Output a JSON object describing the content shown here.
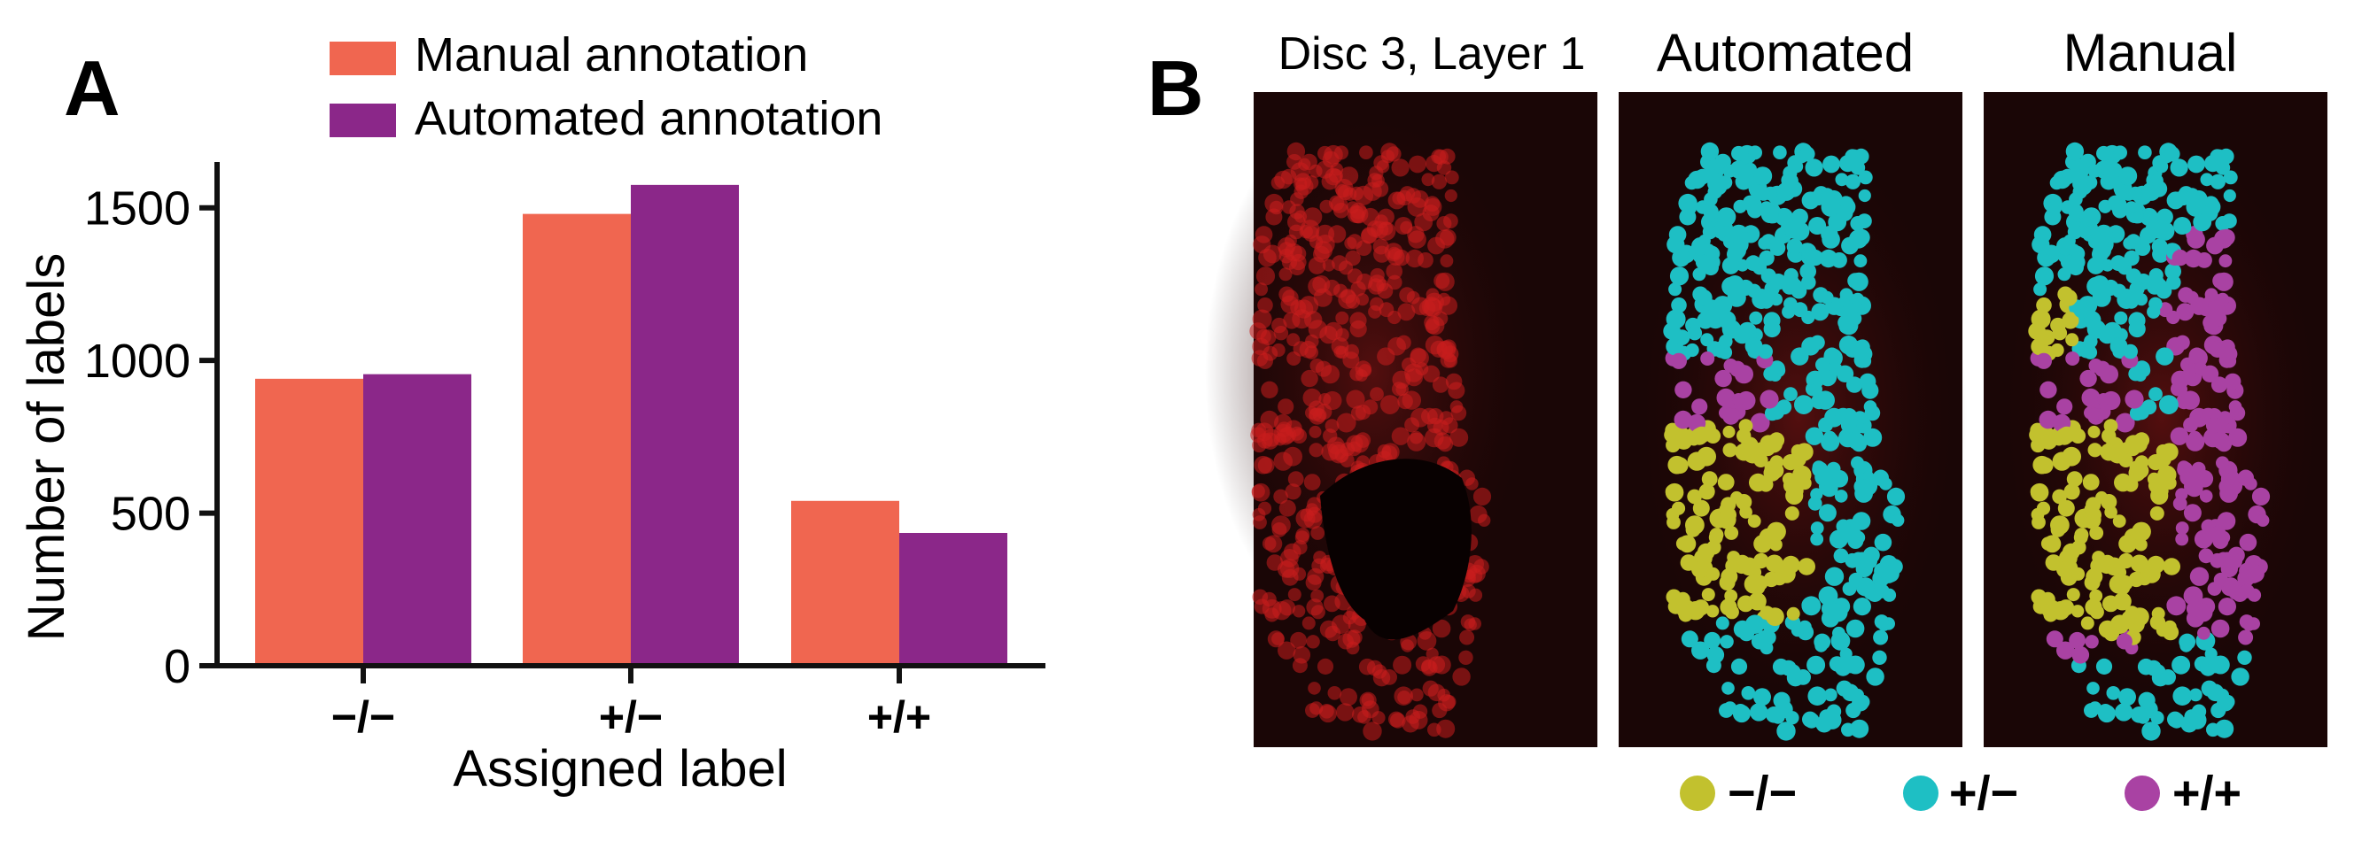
{
  "panel_a": {
    "letter": "A"
  },
  "panel_b": {
    "letter": "B",
    "image_titles": [
      "Disc 3, Layer 1",
      "Automated",
      "Manual"
    ],
    "legend": [
      {
        "label": "−/−",
        "color": "#c2c12e"
      },
      {
        "label": "+/−",
        "color": "#1ebfc4"
      },
      {
        "label": "+/+",
        "color": "#a942a3"
      }
    ],
    "colors": {
      "background": "#1a0606",
      "nucleus_red": "#c81e1e"
    }
  },
  "chart_data": {
    "type": "bar",
    "categories": [
      "−/−",
      "+/−",
      "+/+"
    ],
    "series": [
      {
        "name": "Manual annotation",
        "values": [
          940,
          1480,
          540
        ],
        "color": "#f06650"
      },
      {
        "name": "Automated annotation",
        "values": [
          955,
          1575,
          435
        ],
        "color": "#8b2789"
      }
    ],
    "xlabel": "Assigned label",
    "ylabel": "Number of labels",
    "ylim": [
      0,
      1650
    ],
    "yticks": [
      0,
      500,
      1000,
      1500
    ],
    "legend_position": "top"
  }
}
